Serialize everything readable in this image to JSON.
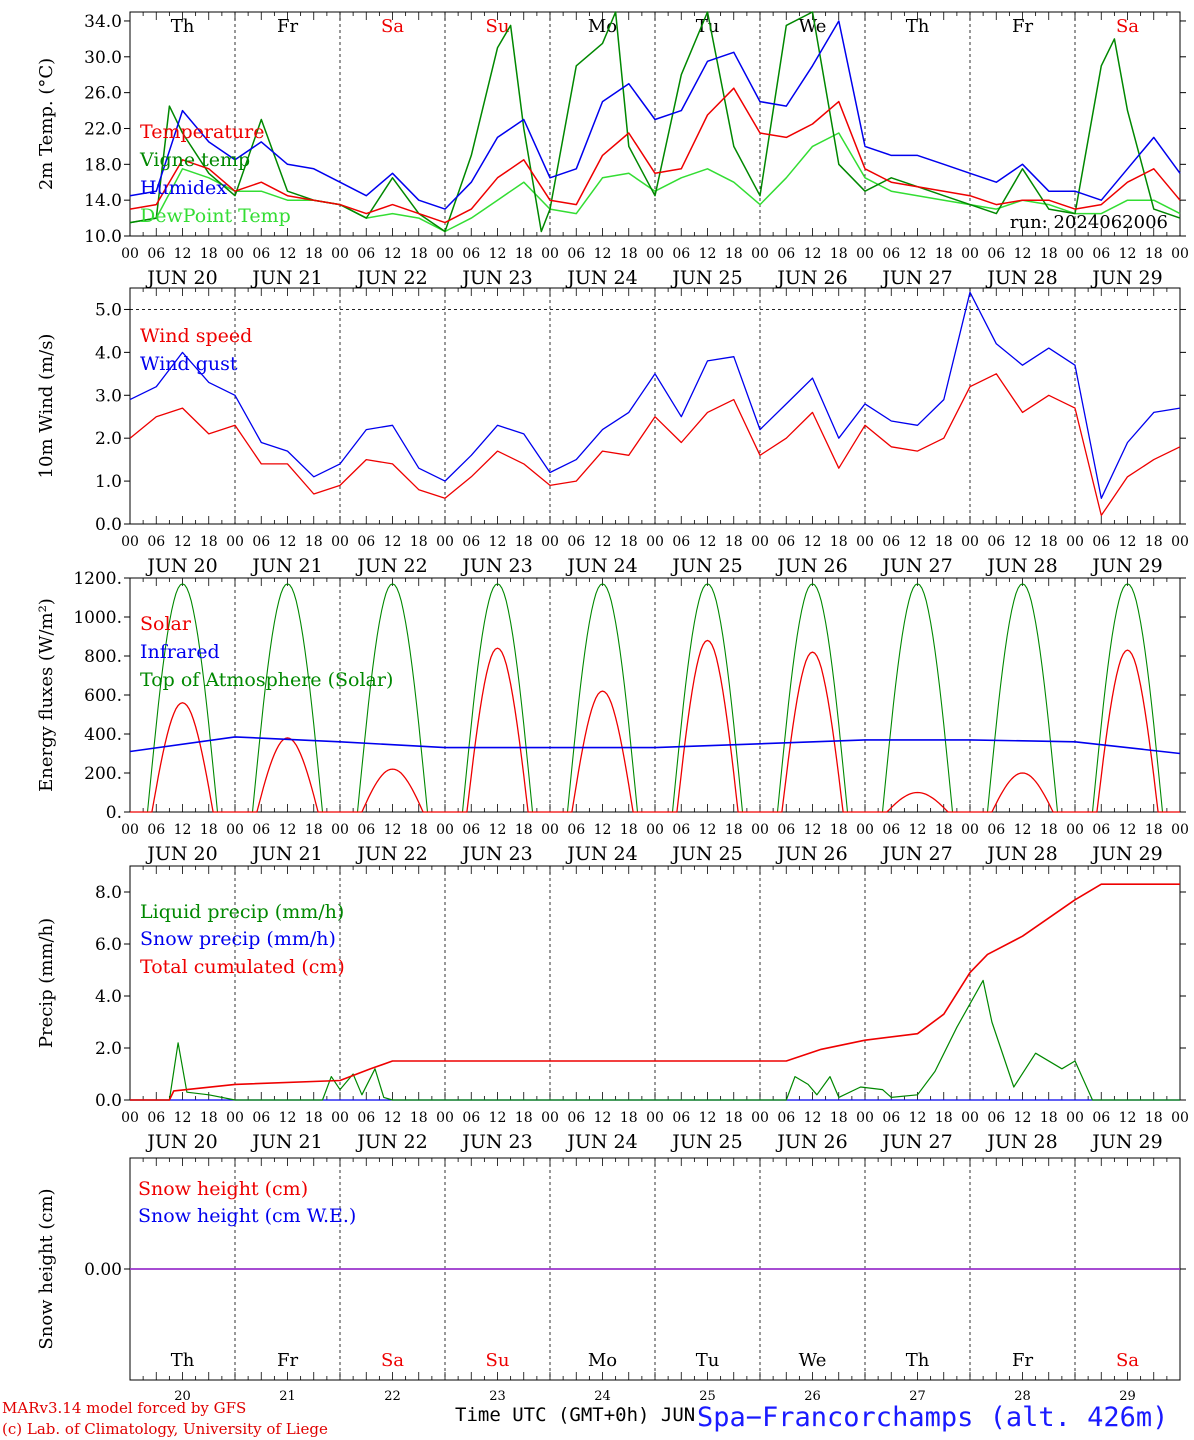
{
  "footer": {
    "credit_line1": "MARv3.14 model forced by GFS",
    "credit_line2": "(c) Lab. of Climatology, University of Liege",
    "xlabel": "Time UTC (GMT+0h) JUN",
    "station": "Spa−Francorchamps (alt. 426m)"
  },
  "colors": {
    "red": "#ee0000",
    "blue": "#0000ee",
    "dark_green": "#008800",
    "light_green": "#33dd33",
    "purple": "#9933cc",
    "weekend": "#ee0000"
  },
  "days": {
    "weekdays": [
      "Th",
      "Fr",
      "Sa",
      "Su",
      "Mo",
      "Tu",
      "We",
      "Th",
      "Fr",
      "Sa"
    ],
    "weekend_flags": [
      false,
      false,
      true,
      true,
      false,
      false,
      false,
      false,
      false,
      true
    ],
    "dates": [
      "JUN 20",
      "JUN 21",
      "JUN 22",
      "JUN 23",
      "JUN 24",
      "JUN 25",
      "JUN 26",
      "JUN 27",
      "JUN 28",
      "JUN 29"
    ],
    "day_numbers": [
      "20",
      "21",
      "22",
      "23",
      "24",
      "25",
      "26",
      "27",
      "28",
      "29"
    ],
    "hour_ticks": [
      "00",
      "06",
      "12",
      "18"
    ],
    "final_hour": "00"
  },
  "chart_data": [
    {
      "type": "line",
      "ylabel": "2m Temp. (°C)",
      "ylim": [
        10,
        35
      ],
      "yticks": [
        "10.0",
        "14.0",
        "18.0",
        "22.0",
        "26.0",
        "30.0",
        "34.0"
      ],
      "ytick_values": [
        10,
        14,
        18,
        22,
        26,
        30,
        34
      ],
      "annotation": "run: 2024062006",
      "x_unit": "hours since JUN 20 00 UTC",
      "series": [
        {
          "name": "Temperature",
          "color": "#ee0000",
          "x": [
            0,
            6,
            12,
            18,
            24,
            30,
            36,
            42,
            48,
            54,
            60,
            66,
            72,
            78,
            84,
            90,
            96,
            102,
            108,
            114,
            120,
            126,
            132,
            138,
            144,
            150,
            156,
            162,
            168,
            174,
            180,
            186,
            192,
            198,
            204,
            210,
            216,
            222,
            228,
            234,
            240
          ],
          "values": [
            13.0,
            13.5,
            18.5,
            17.5,
            15.0,
            16.0,
            14.5,
            14.0,
            13.5,
            12.5,
            13.5,
            12.5,
            11.5,
            13.0,
            16.5,
            18.5,
            14.0,
            13.5,
            19.0,
            21.5,
            17.0,
            17.5,
            23.5,
            26.5,
            21.5,
            21.0,
            22.5,
            25.0,
            17.5,
            16.0,
            15.5,
            15.0,
            14.5,
            13.5,
            14.0,
            14.0,
            13.0,
            13.5,
            16.0,
            17.5,
            14.0
          ]
        },
        {
          "name": "Vigne temp",
          "color": "#008800",
          "x": [
            0,
            6,
            9,
            12,
            18,
            24,
            30,
            36,
            42,
            48,
            54,
            60,
            66,
            72,
            78,
            84,
            87,
            90,
            94,
            96,
            102,
            108,
            111,
            114,
            120,
            126,
            132,
            138,
            144,
            150,
            156,
            162,
            168,
            174,
            180,
            186,
            192,
            198,
            204,
            210,
            216,
            222,
            225,
            228,
            234,
            240
          ],
          "values": [
            11.5,
            12.0,
            24.5,
            21.5,
            17.0,
            14.5,
            23.0,
            15.0,
            14.0,
            13.5,
            12.0,
            16.5,
            12.5,
            10.5,
            19.0,
            31.0,
            33.5,
            22.0,
            10.5,
            13.0,
            29.0,
            31.5,
            35.0,
            20.0,
            14.5,
            28.0,
            35.0,
            20.0,
            14.5,
            33.5,
            35.0,
            18.0,
            15.0,
            16.5,
            15.5,
            14.5,
            13.5,
            12.5,
            17.5,
            13.0,
            12.5,
            29.0,
            32.0,
            24.0,
            13.0,
            12.0
          ]
        },
        {
          "name": "Humidex",
          "color": "#0000ee",
          "x": [
            0,
            6,
            12,
            18,
            24,
            30,
            36,
            42,
            48,
            54,
            60,
            66,
            72,
            78,
            84,
            90,
            96,
            102,
            108,
            114,
            120,
            126,
            132,
            138,
            144,
            150,
            156,
            162,
            168,
            174,
            180,
            186,
            192,
            198,
            204,
            210,
            216,
            222,
            228,
            234,
            240
          ],
          "values": [
            14.5,
            15.0,
            24.0,
            20.5,
            18.5,
            20.5,
            18.0,
            17.5,
            16.0,
            14.5,
            17.0,
            14.0,
            13.0,
            16.0,
            21.0,
            23.0,
            16.5,
            17.5,
            25.0,
            27.0,
            23.0,
            24.0,
            29.5,
            30.5,
            25.0,
            24.5,
            29.0,
            34.0,
            20.0,
            19.0,
            19.0,
            18.0,
            17.0,
            16.0,
            18.0,
            15.0,
            15.0,
            14.0,
            17.5,
            21.0,
            17.0
          ]
        },
        {
          "name": "DewPoint Temp",
          "color": "#33dd33",
          "x": [
            0,
            6,
            12,
            18,
            24,
            30,
            36,
            42,
            48,
            54,
            60,
            66,
            72,
            78,
            84,
            90,
            96,
            102,
            108,
            114,
            120,
            126,
            132,
            138,
            144,
            150,
            156,
            162,
            168,
            174,
            180,
            186,
            192,
            198,
            204,
            210,
            216,
            222,
            228,
            234,
            240
          ],
          "values": [
            11.5,
            12.0,
            17.5,
            16.5,
            15.0,
            15.0,
            14.0,
            14.0,
            13.5,
            12.0,
            12.5,
            12.0,
            10.5,
            12.0,
            14.0,
            16.0,
            13.0,
            12.5,
            16.5,
            17.0,
            15.0,
            16.5,
            17.5,
            16.0,
            13.5,
            16.5,
            20.0,
            21.5,
            16.5,
            15.0,
            14.5,
            14.0,
            13.5,
            13.0,
            14.0,
            13.5,
            12.5,
            12.5,
            14.0,
            14.0,
            12.5
          ]
        }
      ]
    },
    {
      "type": "line",
      "ylabel": "10m Wind (m/s)",
      "ylim": [
        0,
        5.5
      ],
      "yticks": [
        "0.0",
        "1.0",
        "2.0",
        "3.0",
        "4.0",
        "5.0"
      ],
      "ytick_values": [
        0,
        1,
        2,
        3,
        4,
        5
      ],
      "dashed_y": 5.0,
      "x_unit": "hours since JUN 20 00 UTC",
      "series": [
        {
          "name": "Wind speed",
          "color": "#ee0000",
          "x": [
            0,
            6,
            12,
            18,
            24,
            30,
            36,
            42,
            48,
            54,
            60,
            66,
            72,
            78,
            84,
            90,
            96,
            102,
            108,
            114,
            120,
            126,
            132,
            138,
            144,
            150,
            156,
            162,
            168,
            174,
            180,
            186,
            192,
            198,
            204,
            210,
            216,
            222,
            228,
            234,
            240
          ],
          "values": [
            2.0,
            2.5,
            2.7,
            2.1,
            2.3,
            1.4,
            1.4,
            0.7,
            0.9,
            1.5,
            1.4,
            0.8,
            0.6,
            1.1,
            1.7,
            1.4,
            0.9,
            1.0,
            1.7,
            1.6,
            2.5,
            1.9,
            2.6,
            2.9,
            1.6,
            2.0,
            2.6,
            1.3,
            2.3,
            1.8,
            1.7,
            2.0,
            3.2,
            3.5,
            2.6,
            3.0,
            2.7,
            0.2,
            1.1,
            1.5,
            1.8
          ]
        },
        {
          "name": "Wind gust",
          "color": "#0000ee",
          "x": [
            0,
            6,
            12,
            18,
            24,
            30,
            36,
            42,
            48,
            54,
            60,
            66,
            72,
            78,
            84,
            90,
            96,
            102,
            108,
            114,
            120,
            126,
            132,
            138,
            144,
            150,
            156,
            162,
            168,
            174,
            180,
            186,
            192,
            198,
            204,
            210,
            216,
            222,
            228,
            234,
            240
          ],
          "values": [
            2.9,
            3.2,
            4.0,
            3.3,
            3.0,
            1.9,
            1.7,
            1.1,
            1.4,
            2.2,
            2.3,
            1.3,
            1.0,
            1.6,
            2.3,
            2.1,
            1.2,
            1.5,
            2.2,
            2.6,
            3.5,
            2.5,
            3.8,
            3.9,
            2.2,
            2.8,
            3.4,
            2.0,
            2.8,
            2.4,
            2.3,
            2.9,
            5.4,
            4.2,
            3.7,
            4.1,
            3.7,
            0.6,
            1.9,
            2.6,
            2.7
          ]
        }
      ]
    },
    {
      "type": "line",
      "ylabel": "Energy fluxes (W/m²)",
      "ylim": [
        0,
        1200
      ],
      "yticks": [
        "0.",
        "200.",
        "400.",
        "600.",
        "800.",
        "1000.",
        "1200."
      ],
      "ytick_values": [
        0,
        200,
        400,
        600,
        800,
        1000,
        1200
      ],
      "x_unit": "hours since JUN 20 00 UTC",
      "series": [
        {
          "name": "Solar",
          "color": "#ee0000",
          "daily_peaks_w_m2": [
            560,
            380,
            220,
            840,
            620,
            880,
            820,
            100,
            200,
            830
          ]
        },
        {
          "name": "Infrared",
          "color": "#0000ee",
          "x": [
            0,
            24,
            48,
            72,
            96,
            120,
            144,
            168,
            192,
            216,
            240
          ],
          "values": [
            310,
            385,
            360,
            330,
            330,
            330,
            350,
            370,
            370,
            360,
            300
          ]
        },
        {
          "name": "Top of Atmosphere (Solar)",
          "color": "#008800",
          "daily_peak_w_m2": 1170,
          "daylight_hours": [
            4,
            20
          ]
        }
      ]
    },
    {
      "type": "line",
      "ylabel": "Precip (mm/h)",
      "ylim": [
        0,
        9
      ],
      "yticks": [
        "0.0",
        "2.0",
        "4.0",
        "6.0",
        "8.0"
      ],
      "ytick_values": [
        0,
        2,
        4,
        6,
        8
      ],
      "x_unit": "hours since JUN 20 00 UTC",
      "series": [
        {
          "name": "Liquid precip (mm/h)",
          "color": "#008800",
          "x": [
            0,
            9,
            11,
            13,
            18,
            24,
            36,
            44,
            46,
            48,
            51,
            53,
            56,
            58,
            60,
            62,
            64,
            72,
            96,
            120,
            150,
            152,
            155,
            157,
            160,
            162,
            167,
            172,
            174,
            180,
            184,
            189,
            195,
            197,
            202,
            207,
            213,
            216,
            220,
            240
          ],
          "values": [
            0,
            0,
            2.2,
            0.3,
            0.2,
            0,
            0,
            0,
            0.9,
            0.4,
            1.0,
            0.2,
            1.2,
            0.1,
            0,
            0,
            0,
            0,
            0,
            0,
            0,
            0.9,
            0.6,
            0.2,
            0.9,
            0.1,
            0.5,
            0.4,
            0.1,
            0.2,
            1.1,
            2.8,
            4.6,
            3.0,
            0.5,
            1.8,
            1.2,
            1.5,
            0,
            0
          ]
        },
        {
          "name": "Snow precip (mm/h)",
          "color": "#0000ee",
          "x": [
            0,
            240
          ],
          "values": [
            0,
            0
          ]
        },
        {
          "name": "Total cumulated (cm)",
          "color": "#ee0000",
          "x": [
            0,
            9,
            10,
            24,
            48,
            55,
            60,
            96,
            120,
            150,
            158,
            168,
            180,
            186,
            192,
            196,
            204,
            216,
            222,
            240
          ],
          "values": [
            0,
            0,
            0.35,
            0.6,
            0.75,
            1.2,
            1.5,
            1.5,
            1.5,
            1.5,
            1.95,
            2.3,
            2.55,
            3.3,
            4.9,
            5.6,
            6.3,
            7.7,
            8.3,
            8.3
          ]
        }
      ]
    },
    {
      "type": "line",
      "ylabel": "Snow height (cm)",
      "ylim": [
        -1,
        1
      ],
      "yticks": [
        "0.00"
      ],
      "ytick_values": [
        0
      ],
      "x_unit": "hours since JUN 20 00 UTC",
      "series": [
        {
          "name": "Snow height (cm)",
          "color": "#ee0000",
          "x": [
            0,
            240
          ],
          "values": [
            0,
            0
          ]
        },
        {
          "name": "Snow height (cm W.E.)",
          "color": "#0000ee",
          "x": [
            0,
            240
          ],
          "values": [
            0,
            0
          ]
        }
      ]
    }
  ]
}
